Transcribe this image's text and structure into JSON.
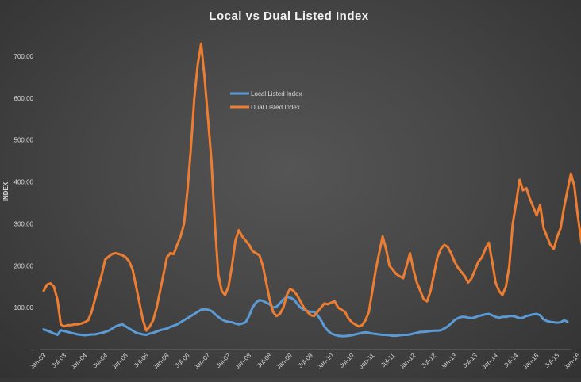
{
  "chart_data": {
    "type": "line",
    "title": "Local vs Dual Listed Index",
    "xlabel": "",
    "ylabel": "INDEX",
    "ylim": [
      0,
      700
    ],
    "yticks": [
      0,
      100,
      200,
      300,
      400,
      500,
      600,
      700
    ],
    "ytick_labels": [
      "-",
      "100.00",
      "200.00",
      "300.00",
      "400.00",
      "500.00",
      "600.00",
      "700.00"
    ],
    "xtick_labels": [
      "Jan-03",
      "Jul-03",
      "Jan-04",
      "Jul-04",
      "Jan-05",
      "Jul-05",
      "Jan-06",
      "Jul-06",
      "Jan-07",
      "Jul-07",
      "Jan-08",
      "Jul-08",
      "Jan-09",
      "Jul-09",
      "Jan-10",
      "Jul-10",
      "Jan-11",
      "Jul-11",
      "Jan-12",
      "Jul-12",
      "Jan-13",
      "Jul-13",
      "Jan-14",
      "Jul-14",
      "Jan-15",
      "Jul-15",
      "Jan-16",
      "Jul-16",
      "Jan-17",
      "Jul-17",
      "Jan-18",
      "Jul-18"
    ],
    "x_start": "2003-01",
    "grid": false,
    "legend_position": "upper-center",
    "series": [
      {
        "name": "Local Listed Index",
        "color": "#5b9bd5",
        "values": [
          48,
          45,
          42,
          38,
          35,
          46,
          44,
          42,
          40,
          38,
          36,
          35,
          34,
          35,
          36,
          36,
          38,
          40,
          42,
          45,
          50,
          55,
          58,
          60,
          55,
          50,
          45,
          40,
          38,
          36,
          35,
          38,
          40,
          43,
          46,
          48,
          50,
          54,
          57,
          60,
          65,
          70,
          75,
          80,
          85,
          90,
          95,
          96,
          95,
          92,
          85,
          78,
          72,
          68,
          66,
          65,
          62,
          60,
          62,
          65,
          80,
          100,
          112,
          118,
          116,
          112,
          108,
          100,
          102,
          110,
          120,
          125,
          124,
          120,
          110,
          100,
          95,
          92,
          90,
          90,
          82,
          70,
          55,
          45,
          38,
          35,
          33,
          32,
          32,
          33,
          34,
          36,
          38,
          40,
          41,
          40,
          38,
          37,
          36,
          35,
          35,
          34,
          33,
          33,
          34,
          35,
          35,
          36,
          38,
          40,
          42,
          42,
          43,
          44,
          45,
          45,
          46,
          50,
          55,
          62,
          70,
          75,
          78,
          78,
          76,
          75,
          77,
          80,
          82,
          84,
          85,
          82,
          78,
          76,
          78,
          78,
          80,
          80,
          78,
          75,
          76,
          80,
          82,
          84,
          85,
          82,
          72,
          68,
          66,
          65,
          64,
          65,
          70,
          66
        ]
      },
      {
        "name": "Dual Listed Index",
        "color": "#ed7d31",
        "values": [
          140,
          155,
          158,
          150,
          120,
          60,
          55,
          58,
          58,
          60,
          60,
          62,
          65,
          70,
          90,
          120,
          150,
          180,
          215,
          222,
          228,
          230,
          228,
          225,
          220,
          210,
          190,
          150,
          110,
          70,
          45,
          55,
          70,
          100,
          140,
          180,
          220,
          230,
          228,
          250,
          270,
          300,
          380,
          480,
          600,
          680,
          730,
          650,
          550,
          450,
          300,
          180,
          140,
          130,
          150,
          200,
          260,
          285,
          270,
          260,
          250,
          235,
          230,
          225,
          200,
          160,
          120,
          90,
          80,
          85,
          100,
          130,
          145,
          140,
          130,
          115,
          100,
          90,
          82,
          80,
          90,
          100,
          110,
          108,
          112,
          115,
          100,
          95,
          90,
          75,
          65,
          60,
          55,
          58,
          70,
          90,
          140,
          190,
          230,
          270,
          240,
          200,
          190,
          180,
          175,
          170,
          200,
          230,
          190,
          160,
          140,
          120,
          115,
          140,
          180,
          220,
          240,
          250,
          245,
          230,
          210,
          195,
          185,
          175,
          160,
          170,
          190,
          210,
          220,
          240,
          255,
          210,
          160,
          140,
          130,
          150,
          200,
          300,
          350,
          405,
          380,
          385,
          360,
          340,
          320,
          345,
          290,
          270,
          250,
          240,
          270,
          290,
          340,
          380,
          420,
          390,
          320,
          260,
          220,
          190,
          200,
          220,
          235,
          230,
          225,
          210,
          180
        ]
      }
    ]
  }
}
